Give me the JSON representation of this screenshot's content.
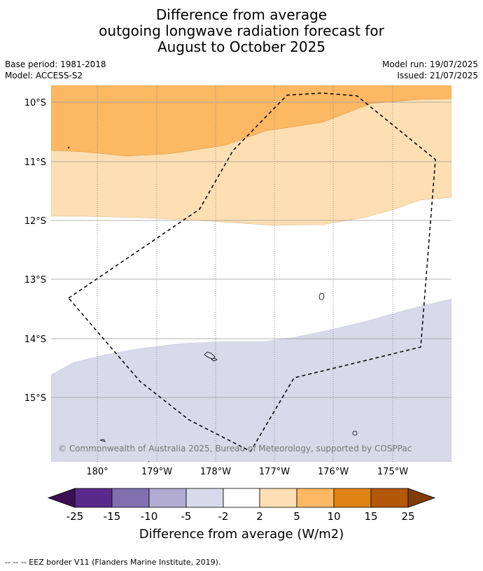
{
  "title": {
    "line1": "Difference from average",
    "line2": "outgoing longwave radiation forecast for",
    "line3": "August to October 2025"
  },
  "meta": {
    "base_period": "Base period: 1981-2018",
    "model": "Model: ACCESS-S2",
    "model_run": "Model run: 19/07/2025",
    "issued": "Issued: 21/07/2025"
  },
  "map": {
    "lat_labels": [
      "10°S",
      "11°S",
      "12°S",
      "13°S",
      "14°S",
      "15°S"
    ],
    "lon_labels": [
      "180°",
      "179°W",
      "178°W",
      "177°W",
      "176°W",
      "175°W"
    ],
    "copyright": "© Commonwealth of Australia 2025, Bureau of Meteorology, supported by COSPPac"
  },
  "colorbar": {
    "title": "Difference from average (W/m2)",
    "tick_labels": [
      "-25",
      "-15",
      "-10",
      "-5",
      "-2",
      "2",
      "5",
      "10",
      "15",
      "25"
    ],
    "colors": {
      "below_-25": "#3b0f52",
      "-25_-15": "#5a2a8a",
      "-15_-10": "#8070b0",
      "-10_-5": "#b2abd2",
      "-5_-2": "#d8d9ea",
      "-2_2": "#ffffff",
      "2_5": "#fddfb3",
      "5_10": "#fdb863",
      "10_15": "#e08214",
      "15_25": "#b35806",
      "above_25": "#7f3b08"
    }
  },
  "footnote": "--  --  -- EEZ border V11 (Flanders Marine Institute, 2019)."
}
